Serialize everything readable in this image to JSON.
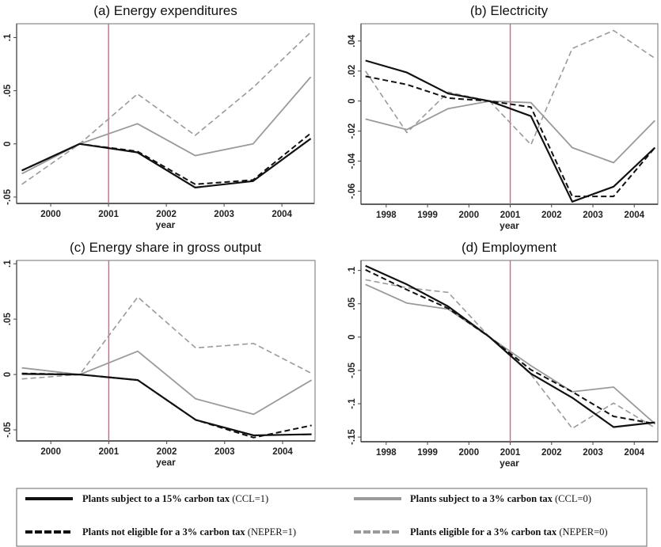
{
  "chart_data": [
    {
      "type": "line",
      "title": "(a) Energy expenditures",
      "xlabel": "year",
      "ylabel": "",
      "x": [
        1999.5,
        2000.5,
        2001.5,
        2002.5,
        2003.5,
        2004.5
      ],
      "xlim": [
        1999.41,
        2004.56
      ],
      "ylim": [
        -0.056,
        0.113
      ],
      "xticks": [
        2000,
        2001,
        2002,
        2003,
        2004
      ],
      "xtick_labels": [
        "2000",
        "2001",
        "2002",
        "2003",
        "2004"
      ],
      "yticks": [
        -0.05,
        0,
        0.05,
        0.1
      ],
      "ytick_labels": [
        "-.05",
        "0",
        ".05",
        ".1"
      ],
      "vline": 2001,
      "series": [
        {
          "name": "Plants subject to a 15% carbon tax (CCL=1)",
          "values": [
            -0.025,
            0,
            -0.008,
            -0.041,
            -0.035,
            0.005
          ]
        },
        {
          "name": "Plants not eligible for a 3% carbon tax (NEPER=1)",
          "values": [
            -0.025,
            0,
            -0.007,
            -0.038,
            -0.034,
            0.01
          ]
        },
        {
          "name": "Plants subject to a 3% carbon tax (CCL=0)",
          "values": [
            -0.028,
            0,
            0.019,
            -0.011,
            0.0,
            0.063
          ]
        },
        {
          "name": "Plants eligible for a 3% carbon tax (NEPER=0)",
          "values": [
            -0.038,
            0,
            0.047,
            0.008,
            0.053,
            0.105
          ]
        }
      ]
    },
    {
      "type": "line",
      "title": "(b) Electricity",
      "xlabel": "year",
      "ylabel": "",
      "x": [
        1997.5,
        1998.5,
        1999.5,
        2000.5,
        2001.5,
        2002.5,
        2003.5,
        2004.5
      ],
      "xlim": [
        1997.39,
        2004.57
      ],
      "ylim": [
        -0.0687,
        0.0515
      ],
      "xticks": [
        1998,
        1999,
        2000,
        2001,
        2002,
        2003,
        2004
      ],
      "xtick_labels": [
        "1998",
        "1999",
        "2000",
        "2001",
        "2002",
        "2003",
        "2004"
      ],
      "yticks": [
        -0.06,
        -0.04,
        -0.02,
        0,
        0.02,
        0.04
      ],
      "ytick_labels": [
        "-.06",
        "-.04",
        "-.02",
        "0",
        ".02",
        ".04"
      ],
      "vline": 2001,
      "series": [
        {
          "name": "Plants subject to a 15% carbon tax (CCL=1)",
          "values": [
            0.027,
            0.019,
            0.005,
            0,
            -0.01,
            -0.067,
            -0.057,
            -0.031
          ]
        },
        {
          "name": "Plants not eligible for a 3% carbon tax (NEPER=1)",
          "values": [
            0.0165,
            0.011,
            0.002,
            0,
            -0.004,
            -0.0635,
            -0.0635,
            -0.031
          ]
        },
        {
          "name": "Plants subject to a 3% carbon tax (CCL=0)",
          "values": [
            -0.012,
            -0.019,
            -0.005,
            0,
            -0.001,
            -0.031,
            -0.041,
            -0.013
          ]
        },
        {
          "name": "Plants eligible for a 3% carbon tax (NEPER=0)",
          "values": [
            0.02,
            -0.021,
            0.006,
            0,
            -0.029,
            0.035,
            0.047,
            0.0285
          ]
        }
      ]
    },
    {
      "type": "line",
      "title": "(c) Energy share in gross output",
      "xlabel": "year",
      "ylabel": "",
      "x": [
        1999.5,
        2000.5,
        2001.5,
        2002.5,
        2003.5,
        2004.5
      ],
      "xlim": [
        1999.41,
        2004.56
      ],
      "ylim": [
        -0.06,
        0.103
      ],
      "xticks": [
        2000,
        2001,
        2002,
        2003,
        2004
      ],
      "xtick_labels": [
        "2000",
        "2001",
        "2002",
        "2003",
        "2004"
      ],
      "yticks": [
        -0.05,
        0,
        0.05,
        0.1
      ],
      "ytick_labels": [
        "-.05",
        "0",
        ".05",
        ".1"
      ],
      "vline": 2001,
      "series": [
        {
          "name": "Plants subject to a 15% carbon tax (CCL=1)",
          "values": [
            0.0005,
            0,
            -0.005,
            -0.041,
            -0.055,
            -0.054
          ]
        },
        {
          "name": "Plants not eligible for a 3% carbon tax (NEPER=1)",
          "values": [
            0.001,
            0,
            -0.005,
            -0.041,
            -0.057,
            -0.046
          ]
        },
        {
          "name": "Plants subject to a 3% carbon tax (CCL=0)",
          "values": [
            0.006,
            0,
            0.021,
            -0.022,
            -0.036,
            -0.005
          ]
        },
        {
          "name": "Plants eligible for a 3% carbon tax (NEPER=0)",
          "values": [
            -0.004,
            0,
            0.07,
            0.024,
            0.028,
            0.001
          ]
        }
      ]
    },
    {
      "type": "line",
      "title": "(d) Employment",
      "xlabel": "year",
      "ylabel": "",
      "x": [
        1997.5,
        1998.5,
        1999.5,
        2000.5,
        2001.5,
        2002.5,
        2003.5,
        2004.5
      ],
      "xlim": [
        1997.39,
        2004.57
      ],
      "ylim": [
        -0.157,
        0.115
      ],
      "xticks": [
        1998,
        1999,
        2000,
        2001,
        2002,
        2003,
        2004
      ],
      "xtick_labels": [
        "1998",
        "1999",
        "2000",
        "2001",
        "2002",
        "2003",
        "2004"
      ],
      "yticks": [
        -0.15,
        -0.1,
        -0.05,
        0,
        0.05,
        0.1
      ],
      "ytick_labels": [
        "-.15",
        "-.1",
        "-.05",
        "0",
        ".05",
        ".1"
      ],
      "vline": 2001,
      "series": [
        {
          "name": "Plants subject to a 15% carbon tax (CCL=1)",
          "values": [
            0.107,
            0.079,
            0.046,
            0,
            -0.055,
            -0.091,
            -0.135,
            -0.128
          ]
        },
        {
          "name": "Plants not eligible for a 3% carbon tax (NEPER=1)",
          "values": [
            0.101,
            0.071,
            0.043,
            0,
            -0.049,
            -0.082,
            -0.119,
            -0.13
          ]
        },
        {
          "name": "Plants subject to a 3% carbon tax (CCL=0)",
          "values": [
            0.079,
            0.051,
            0.042,
            0,
            -0.043,
            -0.082,
            -0.075,
            -0.13
          ]
        },
        {
          "name": "Plants eligible for a 3% carbon tax (NEPER=0)",
          "values": [
            0.086,
            0.074,
            0.067,
            0,
            -0.056,
            -0.137,
            -0.099,
            -0.136
          ]
        }
      ]
    }
  ],
  "legend": {
    "placement": "bottom",
    "items": [
      {
        "key": "ccl1",
        "bold": "Plants subject to a 15% carbon tax",
        "plain": " (CCL=1)",
        "color": "#111111",
        "style": "solid"
      },
      {
        "key": "ccl0",
        "bold": "Plants subject to a 3% carbon tax",
        "plain": " (CCL=0)",
        "color": "#9a9a9a",
        "style": "solid"
      },
      {
        "key": "neper1",
        "bold": "Plants not eligible for a 3% carbon tax",
        "plain": " (NEPER=1)",
        "color": "#111111",
        "style": "dashed"
      },
      {
        "key": "neper0",
        "bold": "Plants eligible for a 3% carbon tax",
        "plain": " (NEPER=0)",
        "color": "#9a9a9a",
        "style": "dashed"
      }
    ]
  },
  "colors": {
    "vline": "#b8708a",
    "axis": "#555555",
    "black_series": "#111111",
    "gray_series": "#9a9a9a"
  }
}
